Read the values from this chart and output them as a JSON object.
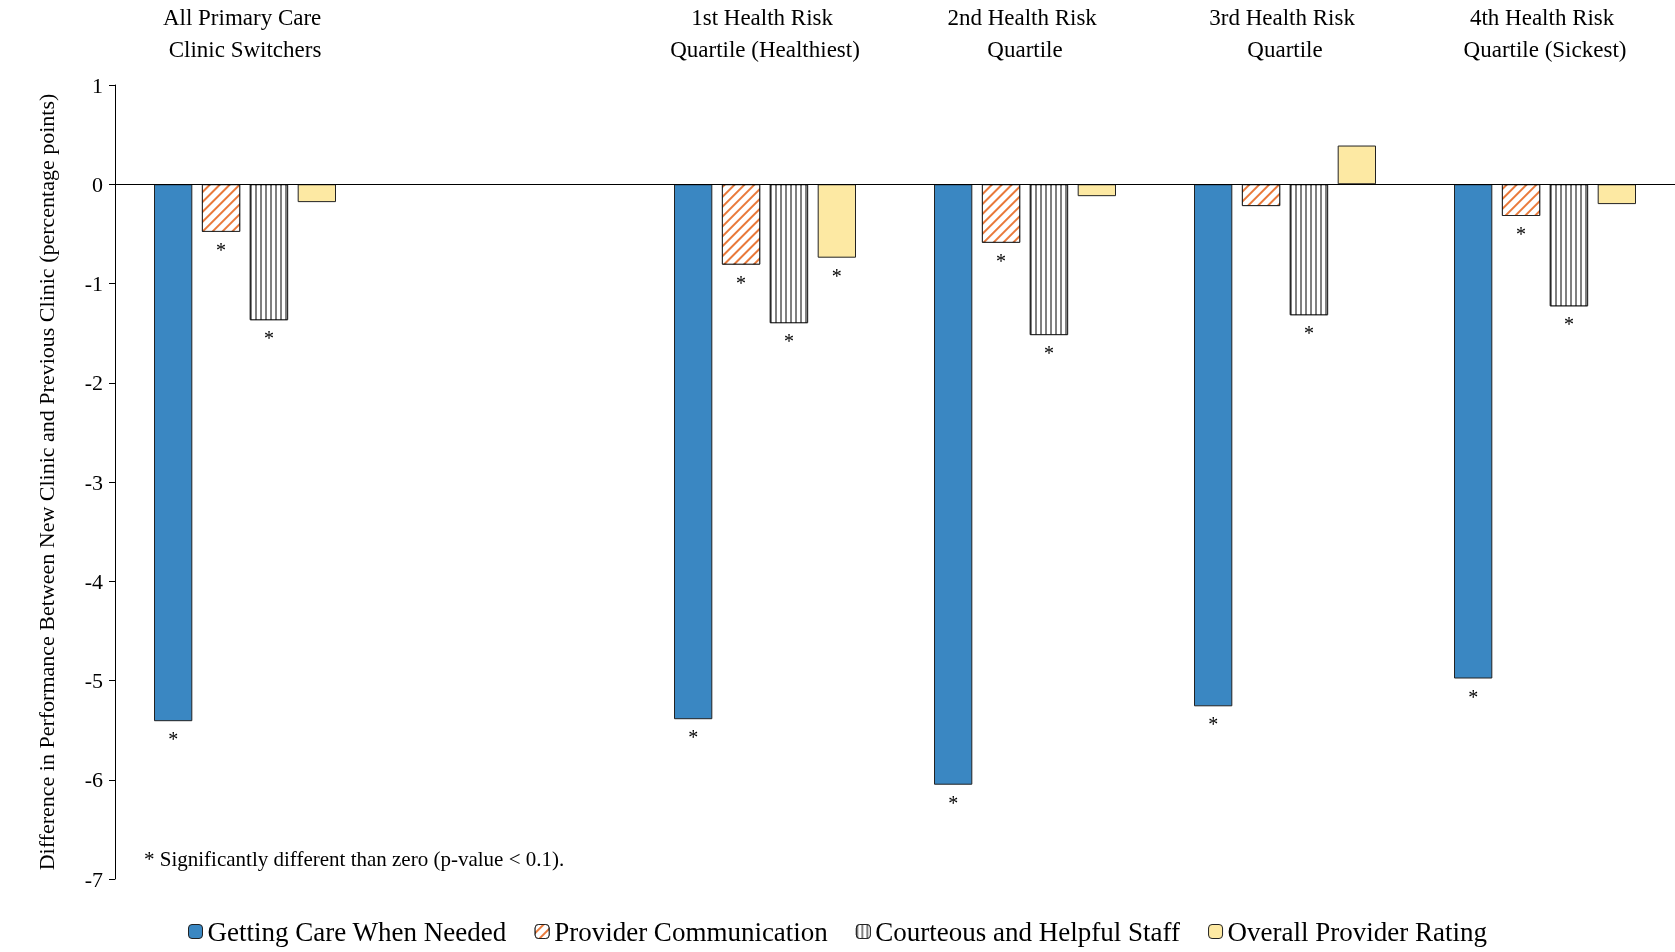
{
  "chart_data": {
    "type": "bar",
    "ylabel": "Difference in Performance Between New Clinic and Previous Clinic (percentage points)",
    "categories": [
      "All Primary Care Clinic Switchers",
      null,
      "1st Health Risk Quartile (Healthiest)",
      "2nd Health Risk Quartile",
      "3rd Health Risk Quartile",
      "4th Health Risk Quartile (Sickest)"
    ],
    "series": [
      {
        "name": "Getting Care When Needed",
        "color": "#3a87c2",
        "values": [
          -5.41,
          null,
          -5.39,
          -6.05,
          -5.26,
          -4.98
        ],
        "value_labels": [
          "*",
          null,
          "*",
          "*",
          "*",
          "*"
        ]
      },
      {
        "name": "Provider Communication",
        "color": "#e9793a",
        "values": [
          -0.48,
          null,
          -0.81,
          -0.59,
          -0.22,
          -0.32
        ],
        "value_labels": [
          "*",
          null,
          "*",
          "*",
          null,
          "*"
        ]
      },
      {
        "name": "Courteous and Helpful Staff",
        "color": "#808080",
        "values": [
          -1.37,
          null,
          -1.4,
          -1.52,
          -1.32,
          -1.23
        ],
        "value_labels": [
          "*",
          null,
          "*",
          "*",
          "*",
          "*"
        ]
      },
      {
        "name": "Overall Provider Rating",
        "color": "#fde9a3",
        "values": [
          -0.18,
          null,
          -0.74,
          -0.12,
          0.39,
          -0.2
        ],
        "value_labels": [
          null,
          null,
          "*",
          null,
          null,
          null
        ]
      }
    ],
    "ylim": [
      -7,
      1
    ],
    "yticks": [
      -7,
      -6,
      -5,
      -4,
      -3,
      -2,
      -1,
      0,
      1
    ],
    "ref_lines": [
      {
        "axis": "y",
        "value": 0,
        "color": "#000000",
        "line_style": "solid"
      }
    ],
    "legend": "bottom",
    "annotations": [
      "* Significantly different than zero (p-value < 0.1)."
    ]
  }
}
